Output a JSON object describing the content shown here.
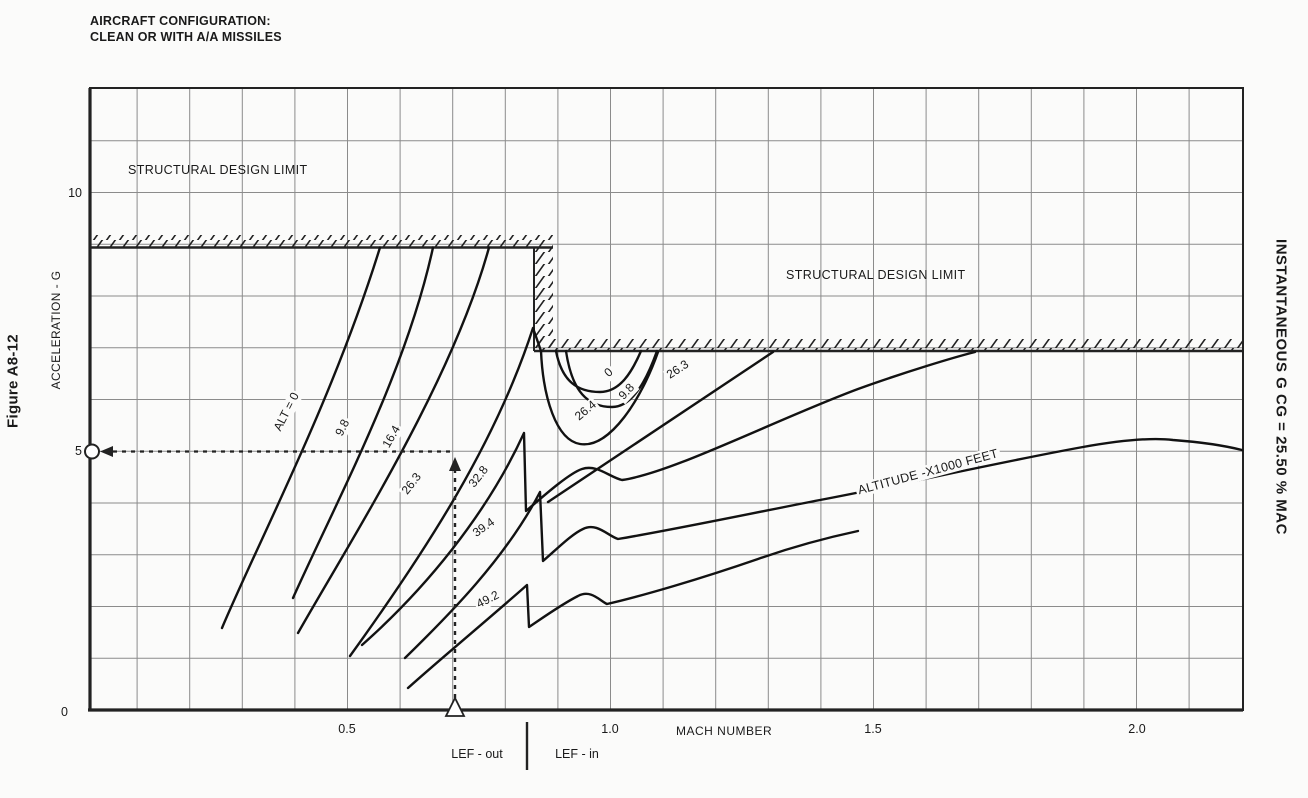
{
  "header": {
    "line1": "AIRCRAFT CONFIGURATION:",
    "line2": "CLEAN OR WITH A/A MISSILES"
  },
  "figure_label": "Figure A8-12",
  "right_title": "INSTANTANEOUS G CG = 25.50 % MAC",
  "axes": {
    "y_label": "ACCELERATION - G",
    "x_label": "MACH NUMBER",
    "y_ticks": {
      "t10": "10",
      "t5": "5",
      "t0": "0"
    },
    "x_ticks": {
      "t05": "0.5",
      "t10": "1.0",
      "t15": "1.5",
      "t20": "2.0"
    }
  },
  "annotations": {
    "structural_limit_upper": "STRUCTURAL DESIGN LIMIT",
    "structural_limit_lower": "STRUCTURAL DESIGN LIMIT",
    "lef_out": "LEF - out",
    "lef_in": "LEF - in"
  },
  "labels": {
    "alt0": "ALT = 0",
    "a98": "9.8",
    "a164": "16.4",
    "a263": "26.3",
    "a328": "32.8",
    "a394": "39.4",
    "a492": "49.2",
    "dip0": "0",
    "dip98": "9.8",
    "dip264": "26.4",
    "r263": "26.3",
    "alt_units": "ALTITUDE -X1000 FEET"
  },
  "chart_data": {
    "type": "line",
    "title": "INSTANTANEOUS G CG = 25.50 % MAC",
    "xlabel": "MACH NUMBER",
    "ylabel": "ACCELERATION - G",
    "xlim": [
      0,
      2.2
    ],
    "ylim": [
      0,
      12
    ],
    "x_tick_labels": [
      0.5,
      1.0,
      1.5,
      2.0
    ],
    "y_tick_labels": [
      0,
      5,
      10
    ],
    "grid": true,
    "grid_step_mach": 0.1,
    "grid_step_g": 1.0,
    "altitude_units": "x1000 feet",
    "structural_design_limit": [
      {
        "segment": "subsonic",
        "g": 9.0,
        "mach_range": [
          0,
          0.88
        ]
      },
      {
        "segment": "transonic_supersonic",
        "g": 7.0,
        "mach_range": [
          0.85,
          2.2
        ]
      }
    ],
    "lef_transition_mach": 0.84,
    "example_guide_point": {
      "mach": 0.7,
      "g": 5.0
    },
    "series": [
      {
        "name": "ALT = 0",
        "points": [
          [
            0.26,
            1.6
          ],
          [
            0.41,
            5.4
          ],
          [
            0.56,
            9.0
          ]
        ],
        "transonic_dip": [
          [
            0.9,
            7.0
          ],
          [
            0.98,
            6.2
          ],
          [
            1.06,
            7.0
          ]
        ]
      },
      {
        "name": "9.8",
        "points": [
          [
            0.4,
            2.2
          ],
          [
            0.53,
            4.7
          ],
          [
            0.66,
            9.0
          ]
        ],
        "transonic_dip": [
          [
            0.92,
            7.0
          ],
          [
            1.0,
            5.9
          ],
          [
            1.09,
            7.0
          ]
        ]
      },
      {
        "name": "16.4",
        "points": [
          [
            0.41,
            1.5
          ],
          [
            0.6,
            4.6
          ],
          [
            0.77,
            9.0
          ]
        ],
        "transonic_dip": [
          [
            0.87,
            7.0
          ],
          [
            0.94,
            5.2
          ],
          [
            1.09,
            7.0
          ]
        ]
      },
      {
        "name": "26.3",
        "points": [
          [
            0.51,
            1.0
          ],
          [
            0.7,
            4.9
          ],
          [
            0.85,
            7.4
          ],
          [
            0.87,
            6.9
          ],
          [
            0.99,
            5.5
          ],
          [
            1.31,
            7.0
          ]
        ]
      },
      {
        "name": "32.8",
        "points": [
          [
            0.53,
            1.3
          ],
          [
            0.7,
            3.6
          ],
          [
            0.84,
            5.4
          ],
          [
            0.84,
            3.8
          ],
          [
            0.94,
            4.7
          ],
          [
            1.02,
            4.4
          ],
          [
            1.36,
            5.9
          ],
          [
            1.69,
            7.0
          ]
        ]
      },
      {
        "name": "39.4",
        "points": [
          [
            0.61,
            1.0
          ],
          [
            0.75,
            2.8
          ],
          [
            0.87,
            4.2
          ],
          [
            0.87,
            2.9
          ],
          [
            0.95,
            3.5
          ],
          [
            1.01,
            3.3
          ],
          [
            1.4,
            4.1
          ],
          [
            1.65,
            4.5
          ],
          [
            2.07,
            5.2
          ],
          [
            2.2,
            5.0
          ]
        ]
      },
      {
        "name": "49.2",
        "points": [
          [
            0.62,
            0.4
          ],
          [
            0.75,
            1.6
          ],
          [
            0.84,
            2.4
          ],
          [
            0.84,
            1.6
          ],
          [
            0.94,
            2.2
          ],
          [
            0.99,
            2.0
          ],
          [
            1.34,
            3.1
          ],
          [
            1.47,
            3.4
          ]
        ]
      }
    ]
  }
}
